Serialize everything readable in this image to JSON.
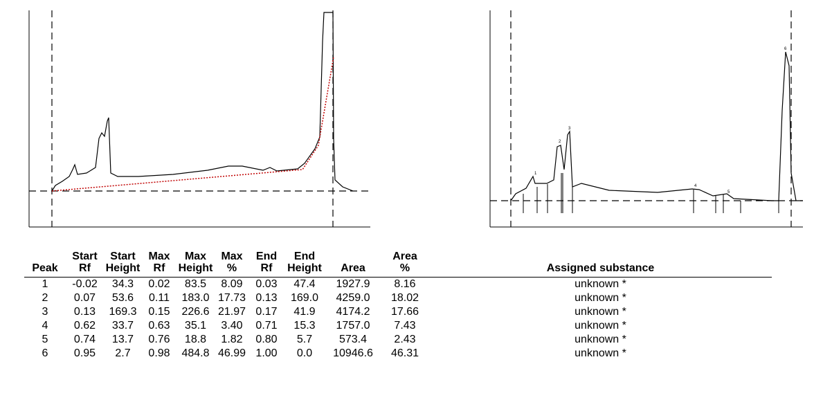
{
  "table": {
    "header": [
      [
        "Peak"
      ],
      [
        "Start",
        "Rf"
      ],
      [
        "Start",
        "Height"
      ],
      [
        "Max",
        "Rf"
      ],
      [
        "Max",
        "Height"
      ],
      [
        "Max",
        "%"
      ],
      [
        "End",
        "Rf"
      ],
      [
        "End",
        "Height"
      ],
      [
        "Area"
      ],
      [
        "Area",
        "%"
      ],
      [
        "Assigned substance"
      ]
    ],
    "rows": [
      [
        "1",
        "-0.02",
        "34.3",
        "0.02",
        "83.5",
        "8.09",
        "0.03",
        "47.4",
        "1927.9",
        "8.16",
        "unknown *"
      ],
      [
        "2",
        "0.07",
        "53.6",
        "0.11",
        "183.0",
        "17.73",
        "0.13",
        "169.0",
        "4259.0",
        "18.02",
        "unknown *"
      ],
      [
        "3",
        "0.13",
        "169.3",
        "0.15",
        "226.6",
        "21.97",
        "0.17",
        "41.9",
        "4174.2",
        "17.66",
        "unknown *"
      ],
      [
        "4",
        "0.62",
        "33.7",
        "0.63",
        "35.1",
        "3.40",
        "0.71",
        "15.3",
        "1757.0",
        "7.43",
        "unknown *"
      ],
      [
        "5",
        "0.74",
        "13.7",
        "0.76",
        "18.8",
        "1.82",
        "0.80",
        "5.7",
        "573.4",
        "2.43",
        "unknown *"
      ],
      [
        "6",
        "0.95",
        "2.7",
        "0.98",
        "484.8",
        "46.99",
        "1.00",
        "0.0",
        "10946.6",
        "46.31",
        "unknown *"
      ]
    ]
  }
}
